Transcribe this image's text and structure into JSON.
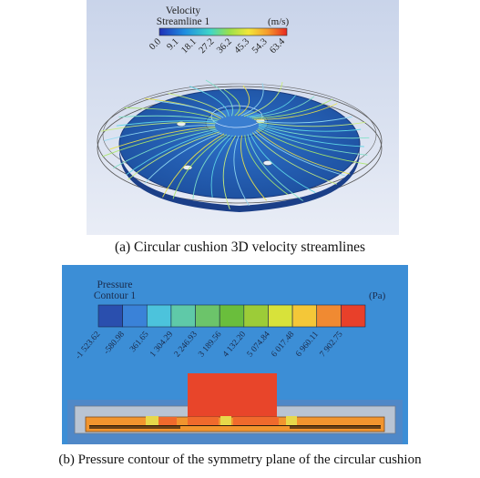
{
  "figure_a": {
    "caption": "(a) Circular cushion 3D velocity streamlines",
    "legend_title_line1": "Velocity",
    "legend_title_line2": "Streamline 1",
    "unit": "(m/s)",
    "ticks": [
      "0.0",
      "9.1",
      "18.1",
      "27.2",
      "36.2",
      "45.3",
      "54.3",
      "63.4"
    ]
  },
  "figure_b": {
    "caption": "(b) Pressure contour of the symmetry plane of the circular cushion",
    "legend_title_line1": "Pressure",
    "legend_title_line2": "Contour 1",
    "unit": "(Pa)",
    "ticks": [
      "-1 523.62",
      "-580.98",
      "361.65",
      "1 304.29",
      "2 246.93",
      "3 189.56",
      "4 132.20",
      "5 074.84",
      "6 017.48",
      "6 960.11",
      "7 902.75"
    ],
    "band_colors": [
      "#2a4fae",
      "#3a82d8",
      "#4cc3dc",
      "#5fc9a8",
      "#6cc46a",
      "#6abe3c",
      "#9ccc38",
      "#d8e23a",
      "#f4c738",
      "#f08a32",
      "#e8402a"
    ]
  },
  "colors": {
    "background_blue": "#3c8ed6",
    "cushion_orange": "#e8452a"
  }
}
